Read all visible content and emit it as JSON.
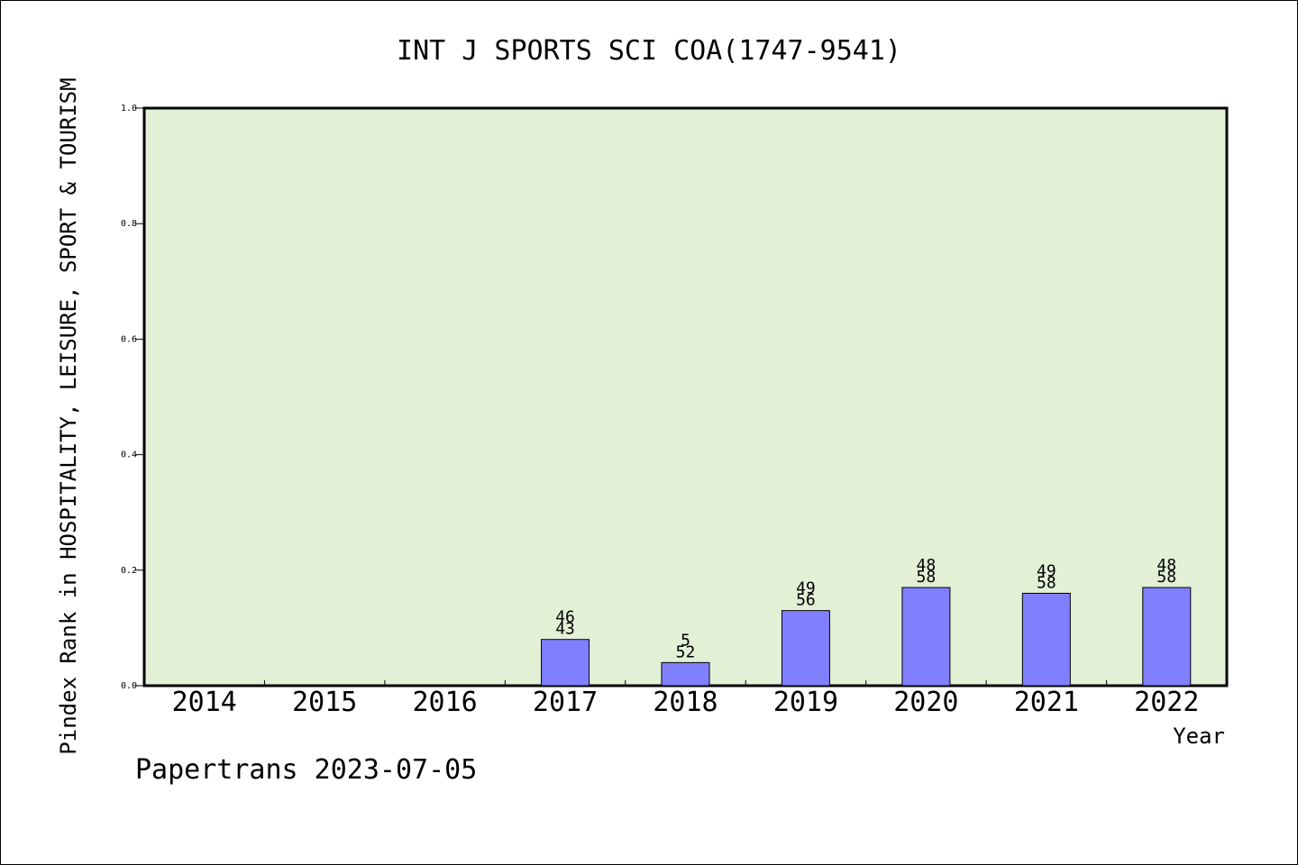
{
  "chart_data": {
    "type": "bar",
    "title": "INT J SPORTS SCI COA(1747-9541)",
    "xlabel": "Year",
    "ylabel": "Pindex Rank in HOSPITALITY, LEISURE, SPORT & TOURISM",
    "categories": [
      "2014",
      "2015",
      "2016",
      "2017",
      "2018",
      "2019",
      "2020",
      "2021",
      "2022"
    ],
    "values": [
      null,
      null,
      null,
      0.08,
      0.04,
      0.13,
      0.17,
      0.16,
      0.17
    ],
    "labels_top": [
      "",
      "",
      "",
      "46",
      "5",
      "49",
      "48",
      "49",
      "48"
    ],
    "labels_bottom": [
      "",
      "",
      "",
      "43",
      "52",
      "56",
      "58",
      "58",
      "58"
    ],
    "ylim": [
      0,
      1.0
    ],
    "yticks": [
      "0.0",
      "0.2",
      "0.4",
      "0.6",
      "0.8",
      "1.0"
    ],
    "grid": false,
    "colors": {
      "plot_background": "#e2f0d6",
      "bar_fill": "#8080ff",
      "bar_stroke": "#000000"
    }
  },
  "footer": "Papertrans 2023-07-05"
}
